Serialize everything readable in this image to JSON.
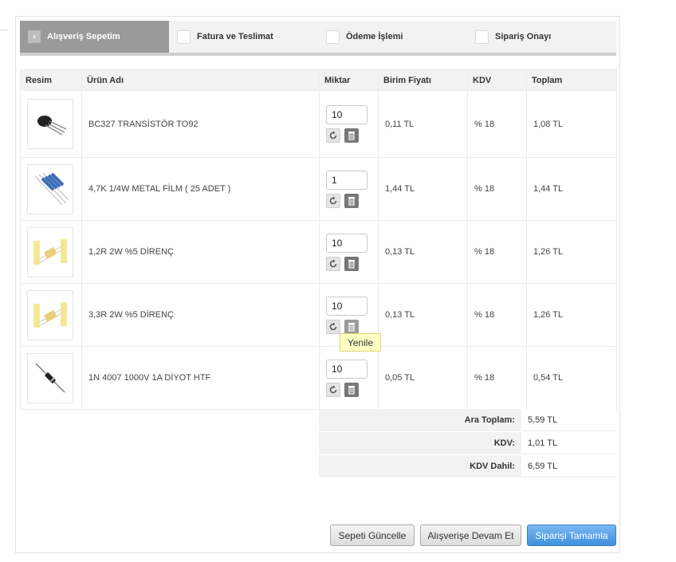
{
  "steps": [
    {
      "label": "Alışveriş Sepetim",
      "active": true
    },
    {
      "label": "Fatura ve Teslimat",
      "active": false
    },
    {
      "label": "Ödeme İşlemi",
      "active": false
    },
    {
      "label": "Sipariş Onayı",
      "active": false
    }
  ],
  "table": {
    "headers": {
      "image": "Resim",
      "name": "Ürün Adı",
      "qty": "Miktar",
      "unit_price": "Birim Fiyatı",
      "vat": "KDV",
      "total": "Toplam"
    },
    "rows": [
      {
        "name": "BC327 TRANSİSTÖR TO92",
        "qty": "10",
        "unit_price": "0,11 TL",
        "vat": "% 18",
        "total": "1,08 TL",
        "icon": "transistor-icon"
      },
      {
        "name": "4,7K 1/4W METAL FİLM ( 25 ADET )",
        "qty": "1",
        "unit_price": "1,44 TL",
        "vat": "% 18",
        "total": "1,44 TL",
        "icon": "resistor-strip-icon"
      },
      {
        "name": "1,2R 2W %5 DİRENÇ",
        "qty": "10",
        "unit_price": "0,13 TL",
        "vat": "% 18",
        "total": "1,26 TL",
        "icon": "resistor-icon"
      },
      {
        "name": "3,3R 2W %5 DİRENÇ",
        "qty": "10",
        "unit_price": "0,13 TL",
        "vat": "% 18",
        "total": "1,26 TL",
        "icon": "resistor-icon"
      },
      {
        "name": "1N 4007 1000V 1A DİYOT HTF",
        "qty": "10",
        "unit_price": "0,05 TL",
        "vat": "% 18",
        "total": "0,54 TL",
        "icon": "diode-icon"
      }
    ]
  },
  "tooltip": "Yenile",
  "totals": {
    "subtotal_label": "Ara Toplam:",
    "subtotal_value": "5,59 TL",
    "vat_label": "KDV:",
    "vat_value": "1,01 TL",
    "grand_label": "KDV Dahil:",
    "grand_value": "6,59 TL"
  },
  "buttons": {
    "update": "Sepeti Güncelle",
    "continue": "Alışverişe Devam Et",
    "checkout": "Siparişi Tamamla"
  },
  "colors": {
    "accent_blue": "#4a97e0",
    "active_step": "#9a9a9a",
    "tooltip_bg": "#ffffc4"
  }
}
